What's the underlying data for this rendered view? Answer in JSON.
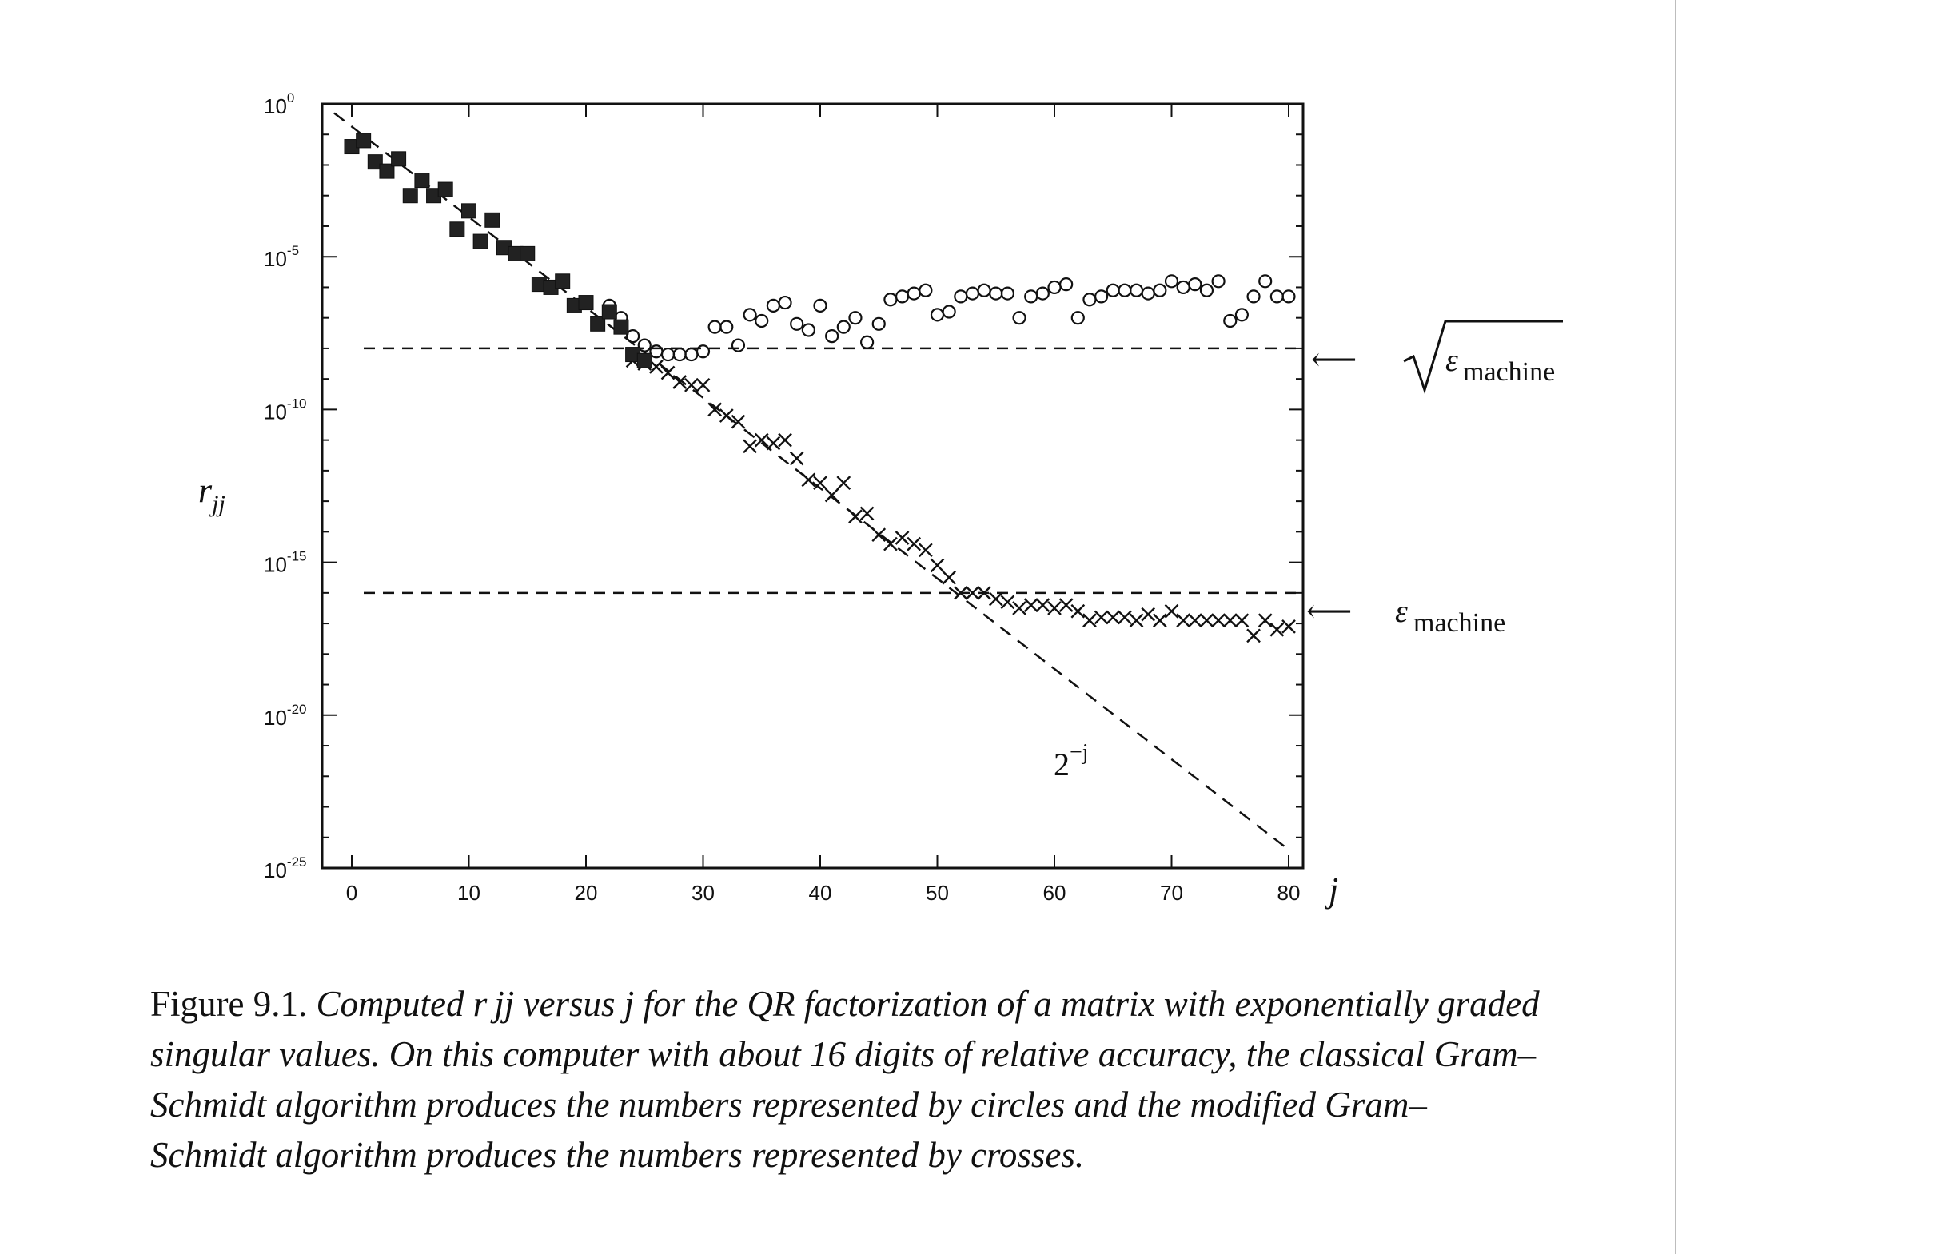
{
  "chart_data": {
    "type": "scatter",
    "xlabel": "j",
    "ylabel": "r",
    "ylabel_sub": "jj",
    "xlim": [
      0,
      80
    ],
    "ylim_log10": [
      -25,
      0
    ],
    "x_ticks": [
      0,
      10,
      20,
      30,
      40,
      50,
      60,
      70,
      80
    ],
    "x_tick_labels": [
      "0",
      "10",
      "20",
      "30",
      "40",
      "50",
      "60",
      "70",
      "80"
    ],
    "y_ticks_log10": [
      0,
      -5,
      -10,
      -15,
      -20,
      -25
    ],
    "y_tick_labels": [
      {
        "base": "10",
        "exp": "0"
      },
      {
        "base": "10",
        "exp": "-5"
      },
      {
        "base": "10",
        "exp": "-10"
      },
      {
        "base": "10",
        "exp": "-15"
      },
      {
        "base": "10",
        "exp": "-20"
      },
      {
        "base": "10",
        "exp": "-25"
      }
    ],
    "series": [
      {
        "name": "classical Gram-Schmidt",
        "marker": "circle",
        "x": [
          22,
          23,
          24,
          25,
          26,
          27,
          28,
          29,
          30,
          31,
          32,
          33,
          34,
          35,
          36,
          37,
          38,
          39,
          40,
          41,
          42,
          43,
          44,
          45,
          46,
          47,
          48,
          49,
          50,
          51,
          52,
          53,
          54,
          55,
          56,
          57,
          58,
          59,
          60,
          61,
          62,
          63,
          64,
          65,
          66,
          67,
          68,
          69,
          70,
          71,
          72,
          73,
          74,
          75,
          76,
          77,
          78,
          79,
          80
        ],
        "log10_values": [
          -6.6,
          -7.0,
          -7.6,
          -7.9,
          -8.1,
          -8.2,
          -8.2,
          -8.2,
          -8.1,
          -7.3,
          -7.3,
          -7.9,
          -6.9,
          -7.1,
          -6.6,
          -6.5,
          -7.2,
          -7.4,
          -6.6,
          -7.6,
          -7.3,
          -7.0,
          -7.8,
          -7.2,
          -6.4,
          -6.3,
          -6.2,
          -6.1,
          -6.9,
          -6.8,
          -6.3,
          -6.2,
          -6.1,
          -6.2,
          -6.2,
          -7.0,
          -6.3,
          -6.2,
          -6.0,
          -5.9,
          -7.0,
          -6.4,
          -6.3,
          -6.1,
          -6.1,
          -6.1,
          -6.2,
          -6.1,
          -5.8,
          -6.0,
          -5.9,
          -6.1,
          -5.8,
          -7.1,
          -6.9,
          -6.3,
          -5.8,
          -6.3,
          -6.3
        ]
      },
      {
        "name": "modified Gram-Schmidt",
        "marker": "cross",
        "x": [
          24,
          25,
          26,
          27,
          28,
          29,
          30,
          31,
          32,
          33,
          34,
          35,
          36,
          37,
          38,
          39,
          40,
          41,
          42,
          43,
          44,
          45,
          46,
          47,
          48,
          49,
          50,
          51,
          52,
          53,
          54,
          55,
          56,
          57,
          58,
          59,
          60,
          61,
          62,
          63,
          64,
          65,
          66,
          67,
          68,
          69,
          70,
          71,
          72,
          73,
          74,
          75,
          76,
          77,
          78,
          79,
          80
        ],
        "log10_values": [
          -8.4,
          -8.5,
          -8.6,
          -8.8,
          -9.1,
          -9.2,
          -9.2,
          -10.0,
          -10.2,
          -10.4,
          -11.2,
          -11.0,
          -11.1,
          -11.0,
          -11.6,
          -12.3,
          -12.4,
          -12.8,
          -12.4,
          -13.5,
          -13.4,
          -14.1,
          -14.4,
          -14.2,
          -14.4,
          -14.6,
          -15.1,
          -15.5,
          -16.0,
          -16.0,
          -16.0,
          -16.2,
          -16.3,
          -16.5,
          -16.4,
          -16.4,
          -16.5,
          -16.4,
          -16.6,
          -16.9,
          -16.8,
          -16.8,
          -16.8,
          -16.9,
          -16.7,
          -16.9,
          -16.6,
          -16.9,
          -16.9,
          -16.9,
          -16.9,
          -16.9,
          -16.9,
          -17.4,
          -16.9,
          -17.2,
          -17.1
        ]
      },
      {
        "name": "both algorithms (agreeing)",
        "marker": "filled-square",
        "x": [
          0,
          1,
          2,
          3,
          4,
          5,
          6,
          7,
          8,
          9,
          10,
          11,
          12,
          13,
          14,
          15,
          16,
          17,
          18,
          19,
          20,
          21,
          22,
          23,
          24,
          25
        ],
        "log10_values": [
          -1.4,
          -1.2,
          -1.9,
          -2.2,
          -1.8,
          -3.0,
          -2.5,
          -3.0,
          -2.8,
          -4.1,
          -3.5,
          -4.5,
          -3.8,
          -4.7,
          -4.9,
          -4.9,
          -5.9,
          -6.0,
          -5.8,
          -6.6,
          -6.5,
          -7.2,
          -6.8,
          -7.3,
          -8.2,
          -8.4
        ]
      }
    ],
    "reference_lines": [
      {
        "name": "sqrt-eps",
        "log10_value": -8.0,
        "label_sym": "ε",
        "label_sub": "machine"
      },
      {
        "name": "eps",
        "log10_value": -16.0,
        "label_sym": "ε",
        "label_sub": "machine"
      }
    ],
    "slope_line": {
      "label": "2",
      "label_exp": "−j",
      "x_start": 0,
      "log10_start": -0.3,
      "x_end": 80,
      "log10_end": -24.4
    },
    "annotations": {
      "arrow": "⟵"
    }
  },
  "caption": {
    "number": "Figure 9.1.",
    "text": "Computed r jj versus j for the QR factorization of a matrix with exponentially graded singular values. On this computer with about 16 digits of relative accuracy, the classical Gram–Schmidt algorithm produces the numbers represented by circles and the modified Gram–Schmidt algorithm produces the numbers represented by crosses."
  }
}
